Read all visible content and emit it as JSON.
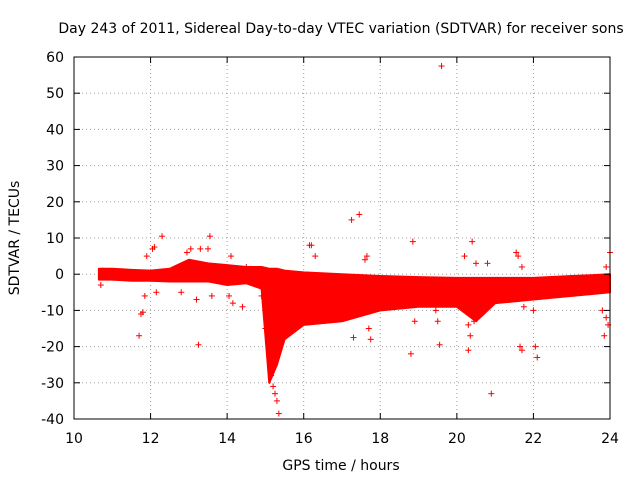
{
  "chart_data": {
    "type": "scatter",
    "title": "Day 243 of 2011, Sidereal Day-to-day VTEC variation (SDTVAR) for receiver sons",
    "xlabel": "GPS time / hours",
    "ylabel": "SDTVAR / TECUs",
    "xlim": [
      10,
      24
    ],
    "ylim": [
      -40,
      60
    ],
    "x_ticks": [
      10,
      12,
      14,
      16,
      18,
      20,
      22,
      24
    ],
    "x_tick_labels": [
      "10",
      "12",
      "14",
      "16",
      "18",
      "20",
      "22",
      "24"
    ],
    "y_ticks": [
      -40,
      -30,
      -20,
      -10,
      0,
      10,
      20,
      30,
      40,
      50,
      60
    ],
    "y_tick_labels": [
      "-40",
      "-30",
      "-20",
      "-10",
      "0",
      "10",
      "20",
      "30",
      "40",
      "50",
      "60"
    ],
    "grid": true,
    "marker": "+",
    "color": "#ff0000",
    "series": [
      {
        "name": "SDTVAR",
        "band": [
          {
            "x": 10.65,
            "lo": -1.5,
            "hi": 1.5
          },
          {
            "x": 11.0,
            "lo": -1.5,
            "hi": 1.5
          },
          {
            "x": 11.5,
            "lo": -1.8,
            "hi": 1.2
          },
          {
            "x": 12.0,
            "lo": -1.8,
            "hi": 1.0
          },
          {
            "x": 12.5,
            "lo": -2.0,
            "hi": 1.5
          },
          {
            "x": 13.0,
            "lo": -2.0,
            "hi": 4.0
          },
          {
            "x": 13.5,
            "lo": -2.0,
            "hi": 3.0
          },
          {
            "x": 14.0,
            "lo": -3.0,
            "hi": 2.5
          },
          {
            "x": 14.5,
            "lo": -2.5,
            "hi": 2.0
          },
          {
            "x": 14.9,
            "lo": -4.0,
            "hi": 2.0
          },
          {
            "x": 15.1,
            "lo": -30.0,
            "hi": 1.5
          },
          {
            "x": 15.3,
            "lo": -25.0,
            "hi": 1.5
          },
          {
            "x": 15.5,
            "lo": -18.0,
            "hi": 1.0
          },
          {
            "x": 16.0,
            "lo": -14.0,
            "hi": 0.5
          },
          {
            "x": 17.0,
            "lo": -13.0,
            "hi": 0.0
          },
          {
            "x": 18.0,
            "lo": -10.0,
            "hi": -0.5
          },
          {
            "x": 19.0,
            "lo": -9.0,
            "hi": -0.8
          },
          {
            "x": 20.0,
            "lo": -9.0,
            "hi": -1.0
          },
          {
            "x": 20.5,
            "lo": -13.0,
            "hi": -1.0
          },
          {
            "x": 21.0,
            "lo": -8.0,
            "hi": -1.0
          },
          {
            "x": 22.0,
            "lo": -7.0,
            "hi": -1.0
          },
          {
            "x": 23.0,
            "lo": -6.0,
            "hi": -0.5
          },
          {
            "x": 23.5,
            "lo": -5.5,
            "hi": -0.3
          },
          {
            "x": 24.0,
            "lo": -5.0,
            "hi": 0.0
          }
        ],
        "points": [
          [
            10.7,
            -3
          ],
          [
            10.75,
            1
          ],
          [
            11.75,
            -11
          ],
          [
            11.8,
            -10.5
          ],
          [
            11.7,
            -17
          ],
          [
            11.85,
            -6
          ],
          [
            11.9,
            5
          ],
          [
            12.05,
            7
          ],
          [
            12.1,
            7.5
          ],
          [
            12.15,
            -5
          ],
          [
            12.3,
            10.5
          ],
          [
            12.8,
            -5
          ],
          [
            12.95,
            6
          ],
          [
            13.05,
            7
          ],
          [
            13.2,
            -7
          ],
          [
            13.25,
            -19.5
          ],
          [
            13.3,
            7
          ],
          [
            13.5,
            7
          ],
          [
            13.55,
            10.5
          ],
          [
            13.6,
            -6
          ],
          [
            14.05,
            -6
          ],
          [
            14.1,
            5
          ],
          [
            14.15,
            -8
          ],
          [
            14.4,
            -9
          ],
          [
            14.5,
            2
          ],
          [
            14.9,
            -6
          ],
          [
            15.0,
            -15
          ],
          [
            15.1,
            -19
          ],
          [
            15.15,
            -28
          ],
          [
            15.2,
            -31
          ],
          [
            15.25,
            -33
          ],
          [
            15.3,
            -35
          ],
          [
            15.35,
            -38.5
          ],
          [
            16.15,
            8
          ],
          [
            16.2,
            8
          ],
          [
            16.3,
            5
          ],
          [
            17.25,
            15
          ],
          [
            17.45,
            16.5
          ],
          [
            17.3,
            -17.5
          ],
          [
            17.7,
            -15
          ],
          [
            17.75,
            -18
          ],
          [
            17.6,
            4
          ],
          [
            17.65,
            5
          ],
          [
            18.9,
            -13
          ],
          [
            18.85,
            9
          ],
          [
            18.8,
            -22
          ],
          [
            19.5,
            -13
          ],
          [
            19.55,
            -19.5
          ],
          [
            19.45,
            -10
          ],
          [
            19.6,
            57.5
          ],
          [
            20.2,
            5
          ],
          [
            20.3,
            -14
          ],
          [
            20.3,
            -21
          ],
          [
            20.35,
            -17
          ],
          [
            20.4,
            9
          ],
          [
            20.45,
            -13
          ],
          [
            20.5,
            3
          ],
          [
            20.8,
            3
          ],
          [
            20.9,
            -33
          ],
          [
            21.55,
            6
          ],
          [
            21.6,
            5
          ],
          [
            21.65,
            -20
          ],
          [
            21.7,
            -21
          ],
          [
            21.75,
            -9
          ],
          [
            21.7,
            2
          ],
          [
            22.05,
            -20
          ],
          [
            22.1,
            -23
          ],
          [
            22.0,
            -10
          ],
          [
            23.8,
            -10
          ],
          [
            23.9,
            -12
          ],
          [
            23.85,
            -17
          ],
          [
            23.95,
            -14
          ],
          [
            24.0,
            6
          ],
          [
            23.9,
            2
          ]
        ]
      }
    ]
  }
}
